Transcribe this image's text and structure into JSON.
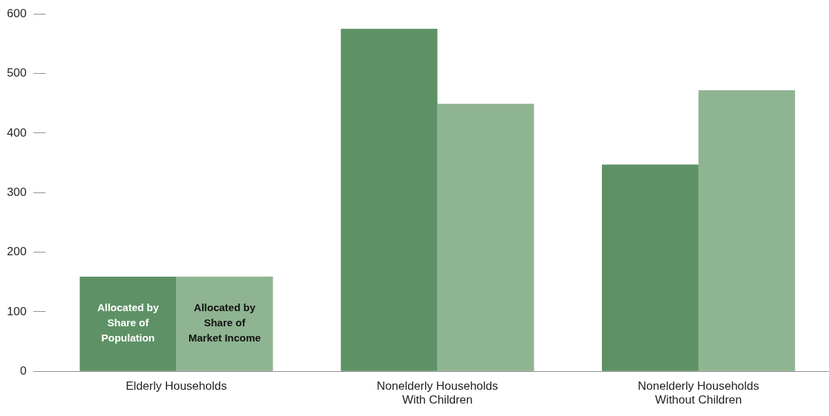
{
  "chart_data": {
    "type": "bar",
    "categories": [
      "Elderly Households",
      "Nonelderly Households\nWith Children",
      "Nonelderly Households\nWithout Children"
    ],
    "series": [
      {
        "name": "Allocated by Share of Population",
        "color": "#5e9266",
        "values": [
          159,
          575,
          347
        ]
      },
      {
        "name": "Allocated by Share of Market Income",
        "color": "#8fb491",
        "values": [
          159,
          449,
          472
        ]
      }
    ],
    "ylim": [
      0,
      600
    ],
    "yticks": [
      0,
      100,
      200,
      300,
      400,
      500,
      600
    ],
    "grid": false,
    "legend": false
  }
}
